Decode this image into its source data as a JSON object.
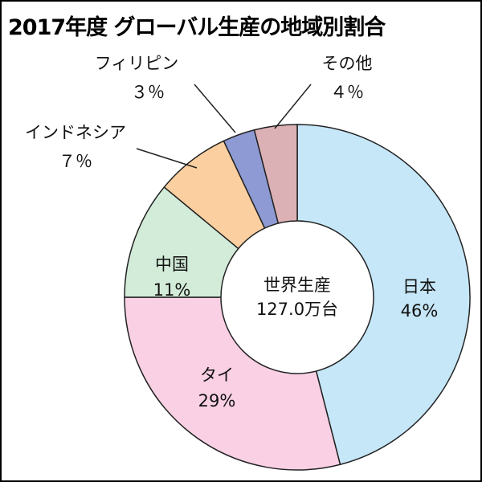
{
  "chart_data": {
    "type": "pie",
    "title": "2017年度 グローバル生産の地域別割合",
    "center_label": [
      "世界生産",
      "127.0万台"
    ],
    "categories": [
      "日本",
      "タイ",
      "中国",
      "インドネシア",
      "フィリピン",
      "その他"
    ],
    "values": [
      46,
      29,
      11,
      7,
      3,
      4
    ],
    "value_labels": [
      "46%",
      "29%",
      "11%",
      "7%",
      "3%",
      "4%"
    ],
    "value_labels_outside": [
      "７％",
      "３％",
      "４％"
    ],
    "colors": [
      "#c6e7f8",
      "#f9d0e4",
      "#d3ecd9",
      "#fbcf9f",
      "#8e9ad3",
      "#dcb1b5"
    ],
    "legend": "none"
  }
}
